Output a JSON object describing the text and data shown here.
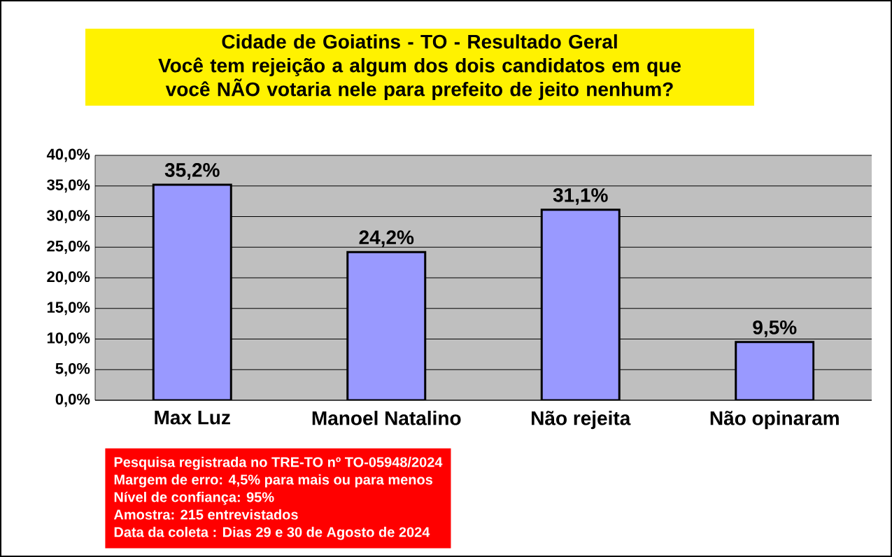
{
  "chart_data": {
    "type": "bar",
    "title": "Cidade de Goiatins - TO - Resultado Geral",
    "subtitle": "Você tem rejeição a algum dos dois candidatos em que você NÃO votaria nele para prefeito de jeito nenhum?",
    "categories": [
      "Max Luz",
      "Manoel Natalino",
      "Não rejeita",
      "Não opinaram"
    ],
    "values": [
      35.2,
      24.2,
      31.1,
      9.5
    ],
    "value_labels": [
      "35,2%",
      "24,2%",
      "31,1%",
      "9,5%"
    ],
    "color": "#9999ff",
    "ylim": [
      0,
      40
    ],
    "yticks": [
      {
        "value": 0,
        "label": "0,0%"
      },
      {
        "value": 5,
        "label": "5,0%"
      },
      {
        "value": 10,
        "label": "10,0%"
      },
      {
        "value": 15,
        "label": "15,0%"
      },
      {
        "value": 20,
        "label": "20,0%"
      },
      {
        "value": 25,
        "label": "25,0%"
      },
      {
        "value": 30,
        "label": "30,0%"
      },
      {
        "value": 35,
        "label": "35,0%"
      },
      {
        "value": 40,
        "label": "40,0%"
      }
    ],
    "grid": "y",
    "annotations": [
      "Pesquisa registrada no TRE-TO nº TO-05948/2024",
      "Margem de erro: 4,5% para mais ou para menos",
      "Nível de confiança: 95%",
      "Amostra: 215 entrevistados",
      "Data da coleta : Dias 29 e 30 de Agosto de 2024"
    ]
  }
}
